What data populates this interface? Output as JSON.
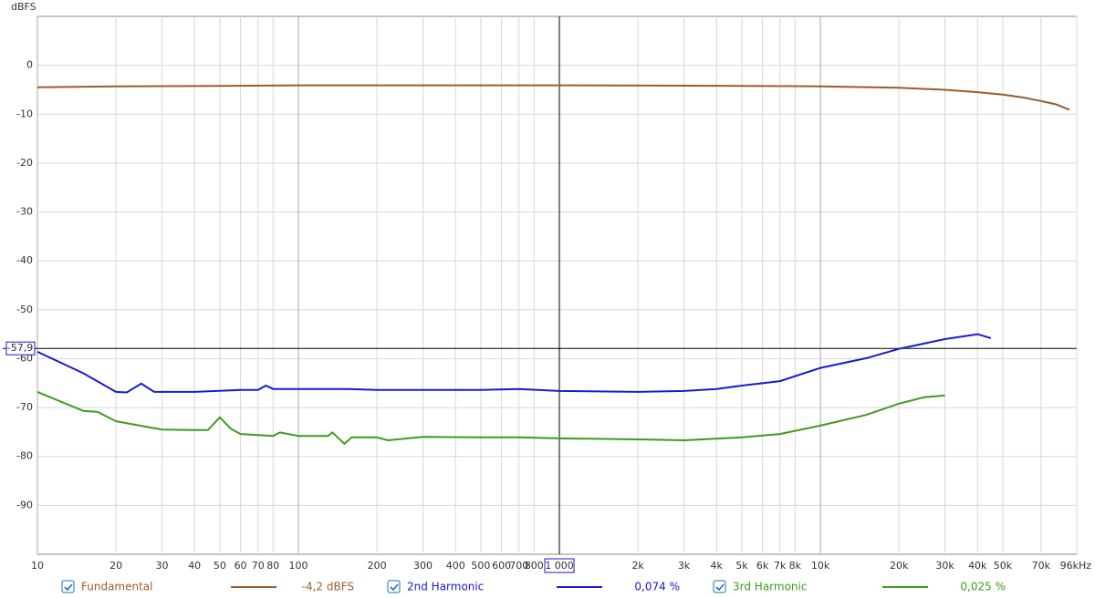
{
  "chart_data": {
    "type": "line",
    "y_axis_label": "dBFS",
    "xscale": "log",
    "grid": true,
    "xlim": [
      10,
      96000
    ],
    "ylim": [
      -100,
      10
    ],
    "yticks": [
      -90,
      -80,
      -70,
      -60,
      -50,
      -40,
      -30,
      -20,
      -10,
      0
    ],
    "xticks": [
      10,
      20,
      30,
      40,
      50,
      60,
      70,
      80,
      100,
      200,
      300,
      400,
      500,
      600,
      700,
      800,
      {
        "value": 2000,
        "label": "2k"
      },
      {
        "value": 3000,
        "label": "3k"
      },
      {
        "value": 4000,
        "label": "4k"
      },
      {
        "value": 5000,
        "label": "5k"
      },
      {
        "value": 6000,
        "label": "6k"
      },
      {
        "value": 7000,
        "label": "7k"
      },
      {
        "value": 8000,
        "label": "8k"
      },
      {
        "value": 10000,
        "label": "10k"
      },
      {
        "value": 20000,
        "label": "20k"
      },
      {
        "value": 30000,
        "label": "30k"
      },
      {
        "value": 40000,
        "label": "40k"
      },
      {
        "value": 50000,
        "label": "50k"
      },
      {
        "value": 70000,
        "label": "70k"
      },
      {
        "value": 96000,
        "label": "96kHz"
      }
    ],
    "cursor": {
      "x": {
        "value": 1000,
        "label": "1 000"
      },
      "y": {
        "value": -57.9,
        "label": "-57,9"
      }
    },
    "series": [
      {
        "name": "Fundamental",
        "color": "#9b5b2f",
        "legend_value": "-4,2 dBFS",
        "x": [
          10,
          20,
          50,
          100,
          1000,
          5000,
          10000,
          20000,
          30000,
          40000,
          50000,
          60000,
          70000,
          80000,
          90000
        ],
        "values": [
          -4.5,
          -4.3,
          -4.2,
          -4.1,
          -4.1,
          -4.2,
          -4.3,
          -4.6,
          -5.0,
          -5.5,
          -6.0,
          -6.6,
          -7.3,
          -8.0,
          -9.1
        ]
      },
      {
        "name": "2nd Harmonic",
        "color": "#1a1acd",
        "legend_value": "0,074 %",
        "x": [
          10,
          15,
          20,
          22,
          25,
          28,
          40,
          60,
          70,
          75,
          80,
          100,
          150,
          200,
          300,
          500,
          700,
          1000,
          2000,
          3000,
          4000,
          5000,
          7000,
          10000,
          15000,
          20000,
          30000,
          40000,
          45000
        ],
        "values": [
          -58.6,
          -63.0,
          -66.8,
          -66.9,
          -65.1,
          -66.8,
          -66.8,
          -66.4,
          -66.4,
          -65.5,
          -66.2,
          -66.2,
          -66.2,
          -66.4,
          -66.4,
          -66.4,
          -66.2,
          -66.6,
          -66.8,
          -66.6,
          -66.2,
          -65.5,
          -64.6,
          -61.9,
          -59.9,
          -58.0,
          -56.0,
          -55.0,
          -55.8
        ]
      },
      {
        "name": "3rd Harmonic",
        "color": "#3f9a1f",
        "legend_value": "0,025 %",
        "x": [
          10,
          15,
          17,
          20,
          30,
          40,
          45,
          50,
          55,
          60,
          80,
          85,
          100,
          130,
          135,
          150,
          160,
          200,
          220,
          300,
          500,
          700,
          1000,
          2000,
          3000,
          5000,
          7000,
          10000,
          15000,
          20000,
          25000,
          30000
        ],
        "values": [
          -66.8,
          -70.7,
          -70.9,
          -72.8,
          -74.5,
          -74.6,
          -74.6,
          -72.0,
          -74.3,
          -75.4,
          -75.8,
          -75.1,
          -75.8,
          -75.8,
          -75.1,
          -77.4,
          -76.1,
          -76.1,
          -76.7,
          -76.0,
          -76.1,
          -76.1,
          -76.3,
          -76.5,
          -76.7,
          -76.1,
          -75.4,
          -73.7,
          -71.5,
          -69.2,
          -67.9,
          -67.5
        ]
      }
    ]
  }
}
